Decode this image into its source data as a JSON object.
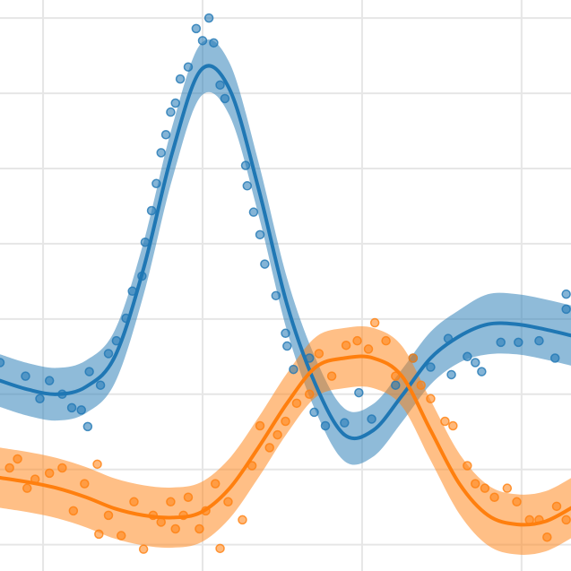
{
  "chart_data": {
    "type": "line",
    "grid": true,
    "xlim": [
      -0.27,
      3.31
    ],
    "ylim": [
      -0.35,
      7.24
    ],
    "xticks": [
      0,
      1,
      2,
      3
    ],
    "yticks": [
      0,
      1,
      2,
      3,
      4,
      5,
      6,
      7
    ],
    "series": [
      {
        "color": "#1f77b4",
        "x": [
          -0.27,
          -0.09,
          0.09,
          0.27,
          0.45,
          0.63,
          0.81,
          0.99,
          1.17,
          1.35,
          1.53,
          1.71,
          1.89,
          2.07,
          2.25,
          2.43,
          2.61,
          2.79,
          2.97,
          3.15,
          3.33
        ],
        "values": [
          2.18,
          2.06,
          2.0,
          2.1,
          2.5,
          3.67,
          5.21,
          6.31,
          6.05,
          4.74,
          3.19,
          2.12,
          1.46,
          1.52,
          1.98,
          2.48,
          2.77,
          2.93,
          2.93,
          2.86,
          2.77
        ],
        "band_lower": [
          1.83,
          1.71,
          1.65,
          1.75,
          2.15,
          3.32,
          4.86,
          5.96,
          5.7,
          4.39,
          2.84,
          1.77,
          1.11,
          1.17,
          1.63,
          2.13,
          2.42,
          2.53,
          2.53,
          2.46,
          2.37
        ],
        "band_upper": [
          2.53,
          2.41,
          2.35,
          2.45,
          2.85,
          4.02,
          5.56,
          6.66,
          6.4,
          5.09,
          3.54,
          2.47,
          1.81,
          1.87,
          2.33,
          2.83,
          3.12,
          3.33,
          3.33,
          3.26,
          3.17
        ],
        "points": {
          "x": [
            -0.27,
            -0.11,
            -0.02,
            0.04,
            0.12,
            0.18,
            0.24,
            0.28,
            0.29,
            0.36,
            0.41,
            0.46,
            0.52,
            0.56,
            0.62,
            0.64,
            0.68,
            0.71,
            0.74,
            0.77,
            0.8,
            0.83,
            0.86,
            0.91,
            0.96,
            1.0,
            1.04,
            1.07,
            1.11,
            1.14,
            1.27,
            1.28,
            1.32,
            1.36,
            1.39,
            1.46,
            1.52,
            1.53,
            1.57,
            1.67,
            1.7,
            1.77,
            1.89,
            1.98,
            2.06,
            2.21,
            2.32,
            2.43,
            2.54,
            2.56,
            2.66,
            2.71,
            2.75,
            2.87,
            2.98,
            3.11,
            3.21,
            3.28,
            3.28
          ],
          "values": [
            2.42,
            2.24,
            1.94,
            2.18,
            2.0,
            1.82,
            1.79,
            1.57,
            2.3,
            2.12,
            2.54,
            2.71,
            3.01,
            3.37,
            3.57,
            4.02,
            4.44,
            4.8,
            5.21,
            5.45,
            5.75,
            5.87,
            6.19,
            6.35,
            6.86,
            6.7,
            7.0,
            6.67,
            6.11,
            5.93,
            5.04,
            4.77,
            4.42,
            4.12,
            3.73,
            3.31,
            2.81,
            2.64,
            2.33,
            2.48,
            1.76,
            1.58,
            1.62,
            2.02,
            1.67,
            2.12,
            2.48,
            2.36,
            2.74,
            2.26,
            2.5,
            2.42,
            2.3,
            2.69,
            2.69,
            2.71,
            2.48,
            3.33,
            3.13
          ]
        }
      },
      {
        "color": "#ff7f0e",
        "x": [
          -0.27,
          -0.09,
          0.09,
          0.27,
          0.45,
          0.63,
          0.81,
          0.99,
          1.17,
          1.35,
          1.53,
          1.71,
          1.89,
          2.07,
          2.25,
          2.43,
          2.61,
          2.79,
          2.97,
          3.15,
          3.33
        ],
        "values": [
          0.89,
          0.83,
          0.75,
          0.63,
          0.48,
          0.39,
          0.36,
          0.43,
          0.75,
          1.29,
          1.88,
          2.36,
          2.48,
          2.48,
          2.24,
          1.52,
          0.81,
          0.39,
          0.27,
          0.31,
          0.51
        ],
        "band_lower": [
          0.49,
          0.43,
          0.35,
          0.23,
          0.08,
          -0.01,
          -0.04,
          0.03,
          0.35,
          0.89,
          1.48,
          1.96,
          2.08,
          2.08,
          1.84,
          1.12,
          0.41,
          -0.01,
          -0.13,
          -0.09,
          0.11
        ],
        "band_upper": [
          1.29,
          1.23,
          1.15,
          1.03,
          0.88,
          0.79,
          0.76,
          0.83,
          1.15,
          1.69,
          2.28,
          2.76,
          2.88,
          2.88,
          2.64,
          1.92,
          1.21,
          0.79,
          0.67,
          0.71,
          0.91
        ],
        "points": {
          "x": [
            -0.21,
            -0.16,
            -0.1,
            -0.05,
            0.04,
            0.12,
            0.19,
            0.26,
            0.34,
            0.35,
            0.41,
            0.49,
            0.57,
            0.63,
            0.69,
            0.74,
            0.8,
            0.83,
            0.88,
            0.91,
            0.98,
            1.02,
            1.08,
            1.11,
            1.16,
            1.25,
            1.31,
            1.36,
            1.42,
            1.47,
            1.52,
            1.59,
            1.67,
            1.73,
            1.81,
            1.9,
            1.97,
            2.04,
            2.08,
            2.15,
            2.21,
            2.32,
            2.37,
            2.43,
            2.52,
            2.57,
            2.66,
            2.71,
            2.77,
            2.83,
            2.91,
            2.97,
            3.05,
            3.11,
            3.16,
            3.22,
            3.28
          ],
          "values": [
            1.02,
            1.14,
            0.75,
            0.87,
            0.95,
            1.02,
            0.45,
            0.81,
            1.07,
            0.14,
            0.39,
            0.12,
            0.57,
            -0.06,
            0.39,
            0.3,
            0.57,
            0.21,
            0.39,
            0.63,
            0.21,
            0.45,
            0.81,
            -0.05,
            0.57,
            0.33,
            1.05,
            1.58,
            1.29,
            1.46,
            1.64,
            1.88,
            2.0,
            2.54,
            2.24,
            2.65,
            2.71,
            2.6,
            2.95,
            2.71,
            2.24,
            2.48,
            2.12,
            1.94,
            1.64,
            1.58,
            1.05,
            0.81,
            0.75,
            0.63,
            0.75,
            0.57,
            0.33,
            0.33,
            0.1,
            0.51,
            0.33
          ]
        }
      }
    ]
  }
}
